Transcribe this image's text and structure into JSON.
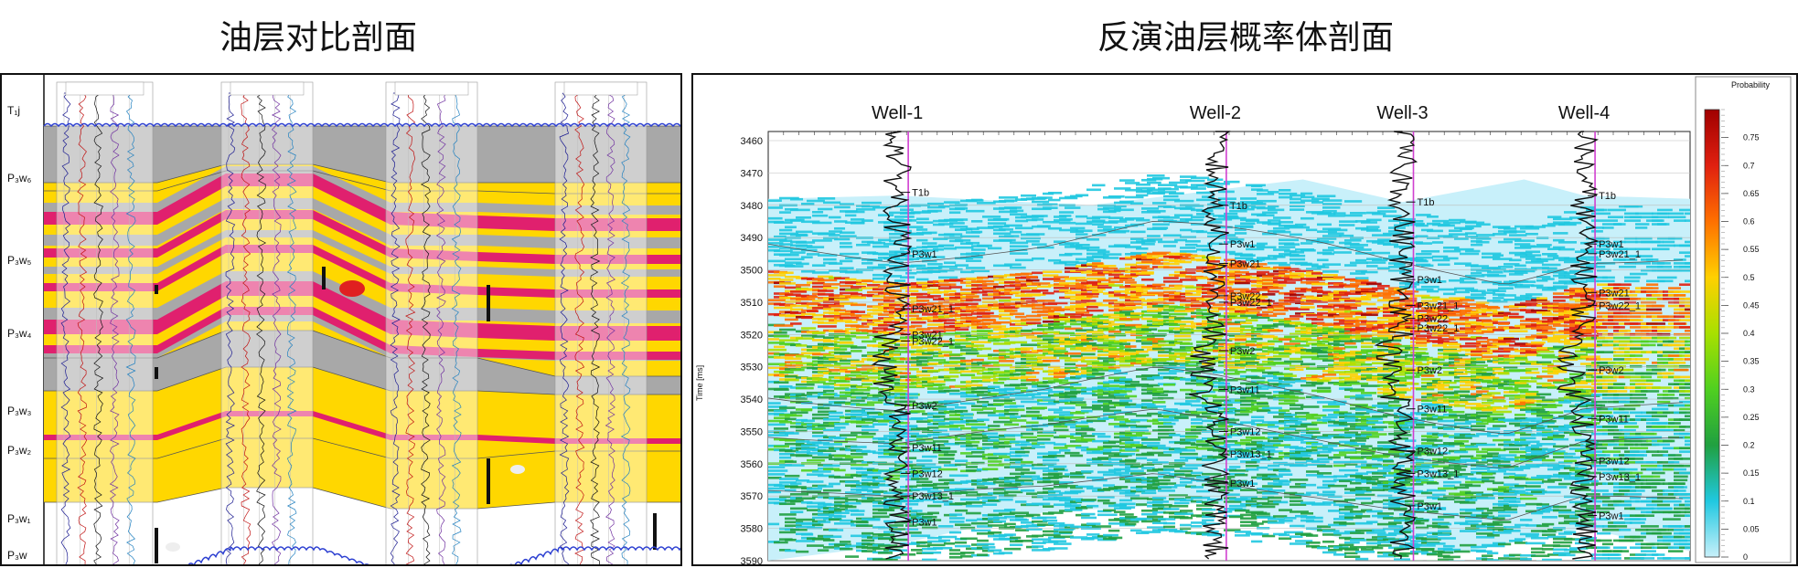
{
  "titles": {
    "left": "油层对比剖面",
    "right": "反演油层概率体剖面"
  },
  "left_section": {
    "layer_labels": [
      "T₁j",
      "P₃w₆",
      "P₃w₅",
      "P₃w₄",
      "P₃w₃",
      "P₃w₂",
      "P₃w₁",
      "P₃w"
    ],
    "colors": {
      "sand": "#ffd700",
      "oil": "#e0206e",
      "shale": "#a8a8a8",
      "unconformity": "#2c3fd1"
    }
  },
  "chart_data": {
    "type": "heatmap",
    "title": "",
    "ylabel": "Time [ms]",
    "ylim": [
      3590,
      3460
    ],
    "yticks": [
      3460,
      3470,
      3480,
      3490,
      3500,
      3510,
      3520,
      3530,
      3540,
      3550,
      3560,
      3570,
      3580,
      3590
    ],
    "wells": [
      {
        "name": "Well-1",
        "x": 0.14,
        "markers": [
          {
            "label": "T1b",
            "t": 3476
          },
          {
            "label": "P3w1",
            "t": 3495
          },
          {
            "label": "P3w21_1",
            "t": 3512
          },
          {
            "label": "P3w21",
            "t": 3520
          },
          {
            "label": "P3w22_1",
            "t": 3522
          },
          {
            "label": "P3w2",
            "t": 3542
          },
          {
            "label": "P3w11",
            "t": 3555
          },
          {
            "label": "P3w12",
            "t": 3563
          },
          {
            "label": "P3w13_1",
            "t": 3570
          },
          {
            "label": "P3w1",
            "t": 3578
          }
        ]
      },
      {
        "name": "Well-2",
        "x": 0.485,
        "markers": [
          {
            "label": "T1b",
            "t": 3480
          },
          {
            "label": "P3w1",
            "t": 3492
          },
          {
            "label": "P3w21",
            "t": 3498
          },
          {
            "label": "P3w22",
            "t": 3508
          },
          {
            "label": "P3w22_1",
            "t": 3510
          },
          {
            "label": "P3w2",
            "t": 3525
          },
          {
            "label": "P3w11",
            "t": 3537
          },
          {
            "label": "P3w12",
            "t": 3550
          },
          {
            "label": "P3w13_1",
            "t": 3557
          },
          {
            "label": "P3w1",
            "t": 3566
          }
        ]
      },
      {
        "name": "Well-3",
        "x": 0.688,
        "markers": [
          {
            "label": "T1b",
            "t": 3479
          },
          {
            "label": "P3w1",
            "t": 3503
          },
          {
            "label": "P3w21_1",
            "t": 3511
          },
          {
            "label": "P3w22",
            "t": 3515
          },
          {
            "label": "P3w22_1",
            "t": 3518
          },
          {
            "label": "P3w2",
            "t": 3531
          },
          {
            "label": "P3w11",
            "t": 3543
          },
          {
            "label": "P3w12",
            "t": 3556
          },
          {
            "label": "P3w13_1",
            "t": 3563
          },
          {
            "label": "P3w1",
            "t": 3573
          }
        ]
      },
      {
        "name": "Well-4",
        "x": 0.885,
        "markers": [
          {
            "label": "T1b",
            "t": 3477
          },
          {
            "label": "P3w1",
            "t": 3492
          },
          {
            "label": "P3w21_1",
            "t": 3495
          },
          {
            "label": "P3w21",
            "t": 3507
          },
          {
            "label": "P3w22_1",
            "t": 3511
          },
          {
            "label": "P3w2",
            "t": 3531
          },
          {
            "label": "P3w11",
            "t": 3546
          },
          {
            "label": "P3w12",
            "t": 3559
          },
          {
            "label": "P3w13_1",
            "t": 3564
          },
          {
            "label": "P3w1",
            "t": 3576
          }
        ]
      }
    ],
    "colorbar": {
      "title": "Probability",
      "range": [
        0,
        0.8
      ],
      "ticks": [
        0,
        0.05,
        0.1,
        0.15,
        0.2,
        0.25,
        0.3,
        0.35,
        0.4,
        0.45,
        0.5,
        0.55,
        0.6,
        0.65,
        0.7,
        0.75
      ],
      "tick_labels": [
        "0",
        "0.05",
        "0.1",
        "0.15",
        "0.2",
        "0.25",
        "0.3",
        "0.35",
        "0.4",
        "0.45",
        "0.5",
        "0.55",
        "0.6",
        "0.65",
        "0.7",
        "0.75"
      ],
      "colors": [
        "#c8f0fa",
        "#20c8e0",
        "#20a040",
        "#50d020",
        "#a8e000",
        "#ffd000",
        "#ff7000",
        "#e02010",
        "#a00000"
      ]
    },
    "grid": true
  }
}
